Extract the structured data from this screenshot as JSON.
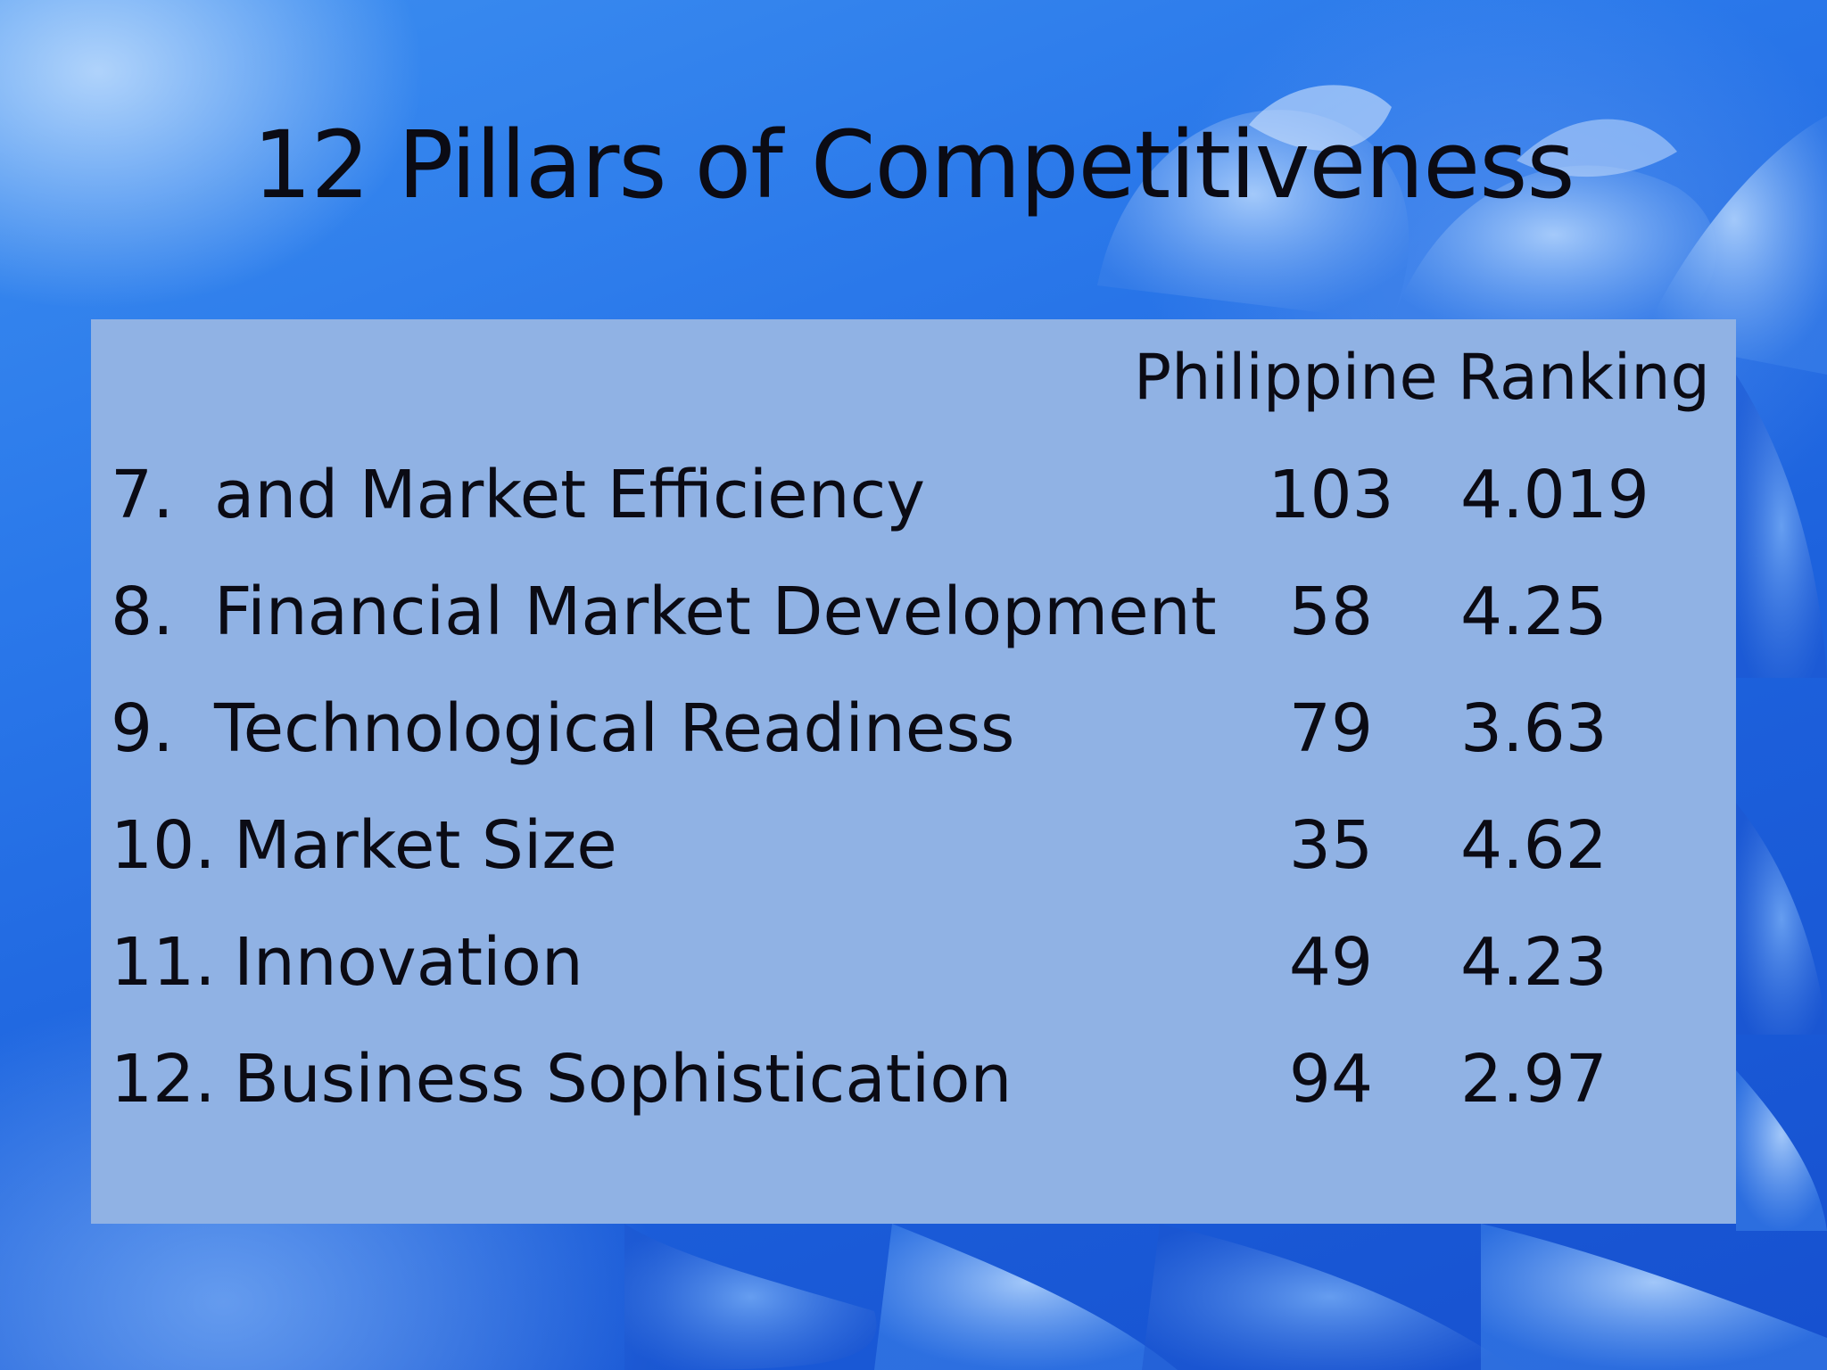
{
  "slide": {
    "title": "12 Pillars of Competitiveness",
    "column_header": "Philippine Ranking",
    "rows": [
      {
        "num": "7.",
        "label": "and Market Efficiency",
        "rank": "103",
        "score": "4.019"
      },
      {
        "num": "8.",
        "label": "Financial Market Development",
        "rank": "58",
        "score": "4.25"
      },
      {
        "num": "9.",
        "label": "Technological Readiness",
        "rank": "79",
        "score": "3.63"
      },
      {
        "num": "10.",
        "label": "Market Size",
        "rank": "35",
        "score": "4.62"
      },
      {
        "num": "11.",
        "label": "Innovation",
        "rank": "49",
        "score": "4.23"
      },
      {
        "num": "12.",
        "label": "Business Sophistication",
        "rank": "94",
        "score": "2.97"
      }
    ]
  },
  "colors": {
    "background": "#1f63e0",
    "panel": "#90b2e4",
    "text": "#0b0b14"
  }
}
